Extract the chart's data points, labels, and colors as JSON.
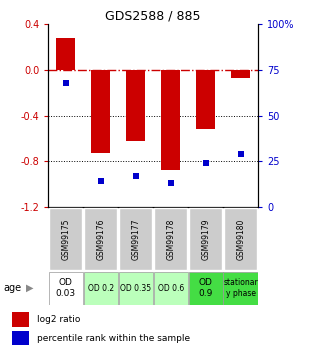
{
  "title": "GDS2588 / 885",
  "samples": [
    "GSM99175",
    "GSM99176",
    "GSM99177",
    "GSM99178",
    "GSM99179",
    "GSM99180"
  ],
  "log2_ratio": [
    0.28,
    -0.73,
    -0.62,
    -0.88,
    -0.52,
    -0.07
  ],
  "percentile_rank": [
    68,
    14,
    17,
    13,
    24,
    29
  ],
  "ylim_left": [
    -1.2,
    0.4
  ],
  "ylim_right": [
    0,
    100
  ],
  "yticks_left": [
    0.4,
    0.0,
    -0.4,
    -0.8,
    -1.2
  ],
  "yticks_right": [
    100,
    75,
    50,
    25,
    0
  ],
  "bar_color": "#cc0000",
  "dot_color": "#0000cc",
  "zero_line_color": "#cc0000",
  "dotted_line_color": "#000000",
  "sample_bg_color": "#cccccc",
  "condition_colors": [
    "#ffffff",
    "#bbffbb",
    "#bbffbb",
    "#bbffbb",
    "#44dd44",
    "#44dd44"
  ],
  "conditions": [
    "OD\n0.03",
    "OD 0.2",
    "OD 0.35",
    "OD 0.6",
    "OD\n0.9",
    "stationar\ny phase"
  ],
  "age_label": "age",
  "legend_bar_label": "log2 ratio",
  "legend_dot_label": "percentile rank within the sample"
}
